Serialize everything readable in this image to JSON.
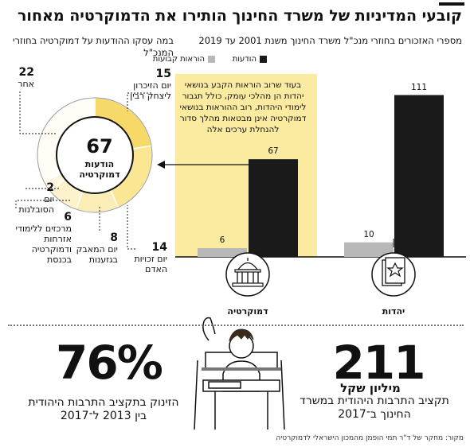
{
  "main_title": "קובעי המדיניות של משרד החינוך הותירו את הדמוקרטיה מאחור",
  "bar_subtitle": "מספרי האזכורים בחוזרי מנכ\"ל משרד החינוך משנת 2001 עד 2019",
  "donut_title": "במה עסקו ההודעות על דמוקרטיה בחוזרי המנכ\"ל",
  "annotation": "בעוד שרוב הוראות הקבע בנושאי יהדות הן מהלכי עומק, כולל תגבור לימודי היהדות, רוב ההוראות בנושאי דמוקרטיה אינן מבטאות מהלך סדור להנחלת ערכים אלה",
  "chart_data": [
    {
      "type": "bar",
      "categories": [
        "יהדות",
        "דמוקרטיה"
      ],
      "series": [
        {
          "name": "הודעות",
          "values": [
            111,
            67
          ],
          "color": "#1a1a1a"
        },
        {
          "name": "הוראות קבועות",
          "values": [
            10,
            6
          ],
          "color": "#b8b8b8"
        }
      ],
      "ylim": [
        0,
        120
      ],
      "legend": "top"
    },
    {
      "type": "pie",
      "title": "",
      "total_value": "67",
      "total_label": "הודעות דמוקרטיה",
      "slices": [
        {
          "value": 15,
          "label": "יום הזיכרון ליצחק רבין",
          "color": "#f7d96a"
        },
        {
          "value": 14,
          "label": "יום זכויות האדם",
          "color": "#fbe693"
        },
        {
          "value": 8,
          "label": "יום המאבק בגזענות",
          "color": "#fcedb6"
        },
        {
          "value": 6,
          "label": "מרכזים ללימודי אזרחות ודמוקרטיה בכנסת",
          "color": "#fdf2cc"
        },
        {
          "value": 2,
          "label": "יום הסובלנות",
          "color": "#fef7e0"
        },
        {
          "value": 22,
          "label": "אחר",
          "color": "#fffdf6"
        }
      ]
    }
  ],
  "stats": {
    "s76": {
      "value": "76%",
      "label": "הזינוק בתקציב התרבות היהודית בין 2013 ל־2017"
    },
    "s211": {
      "value": "211",
      "unit": "מיליון שקל",
      "label": "תקציב התרבות היהודית במשרד החינוך ב־2017"
    }
  },
  "source": "מקור: מחקר של ד\"ר תמי הופמן מהמכון הישראלי לדמוקרטיה",
  "icons": {
    "judaism": "book-star-icon",
    "democracy": "parliament-icon",
    "student": "student-raising-hand-icon"
  }
}
